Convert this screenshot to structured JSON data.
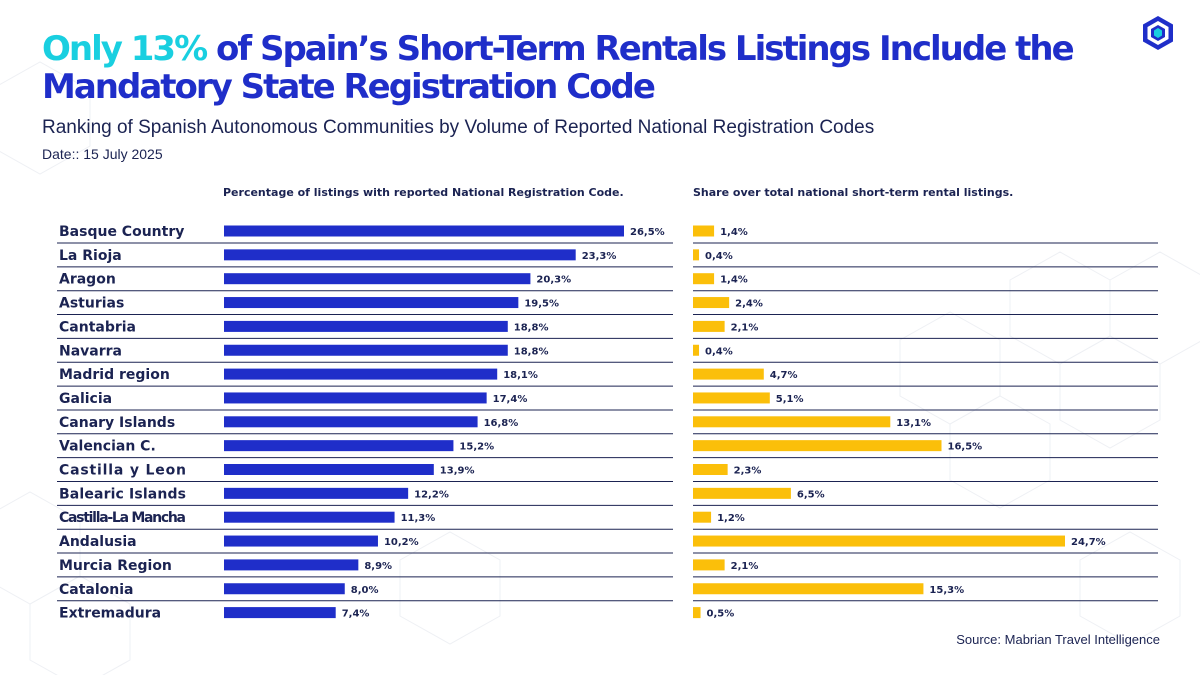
{
  "header": {
    "title_highlight": "Only 13%",
    "title_rest": " of Spain’s Short-Term Rentals Listings Include the Mandatory State Registration Code",
    "subtitle": "Ranking of Spanish Autonomous Communities by Volume of Reported National Registration Codes",
    "date": "Date:: 15 July 2025"
  },
  "source": "Source: Mabrian Travel Intelligence",
  "colors": {
    "primary": "#1f2ec9",
    "accent": "#19cfe0",
    "share": "#fbbf0a",
    "text": "#1b2352"
  },
  "chart_data": {
    "type": "bar",
    "orientation": "horizontal",
    "categories": [
      "Basque Country",
      "La Rioja",
      "Aragon",
      "Asturias",
      "Cantabria",
      "Navarra",
      "Madrid region",
      "Galicia",
      "Canary Islands",
      "Valencian C.",
      "Castilla y Leon",
      "Balearic Islands",
      "Castilla-La Mancha",
      "Andalusia",
      "Murcia Region",
      "Catalonia",
      "Extremadura"
    ],
    "series": [
      {
        "name": "Percentage of listings with reported National Registration Code.",
        "values": [
          26.5,
          23.3,
          20.3,
          19.5,
          18.8,
          18.8,
          18.1,
          17.4,
          16.8,
          15.2,
          13.9,
          12.2,
          11.3,
          10.2,
          8.9,
          8.0,
          7.4
        ],
        "labels": [
          "26,5%",
          "23,3%",
          "20,3%",
          "19,5%",
          "18,8%",
          "18,8%",
          "18,1%",
          "17,4%",
          "16,8%",
          "15,2%",
          "13,9%",
          "12,2%",
          "11,3%",
          "10,2%",
          "8,9%",
          "8,0%",
          "7,4%"
        ],
        "color": "#1f2ec9"
      },
      {
        "name": "Share over total national short-term rental listings.",
        "values": [
          1.4,
          0.4,
          1.4,
          2.4,
          2.1,
          0.4,
          4.7,
          5.1,
          13.1,
          16.5,
          2.3,
          6.5,
          1.2,
          24.7,
          2.1,
          15.3,
          0.5
        ],
        "labels": [
          "1,4%",
          "0,4%",
          "1,4%",
          "2,4%",
          "2,1%",
          "0,4%",
          "4,7%",
          "5,1%",
          "13,1%",
          "16,5%",
          "2,3%",
          "6,5%",
          "1,2%",
          "24,7%",
          "2,1%",
          "15,3%",
          "0,5%"
        ],
        "color": "#fbbf0a"
      }
    ]
  }
}
